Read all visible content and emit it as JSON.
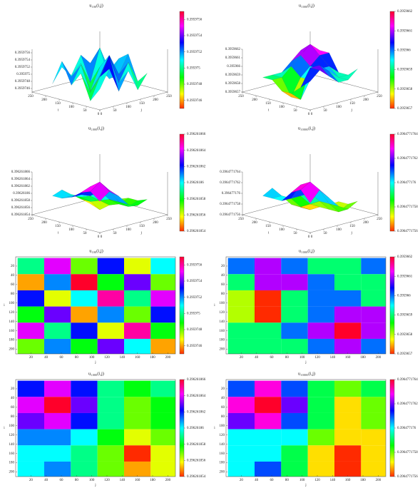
{
  "chart_data": [
    {
      "type": "surface",
      "title": "u₁₀₀(i,j)",
      "xlabel": "j",
      "ylabel": "i",
      "x": [
        20,
        55,
        90,
        125,
        160,
        195
      ],
      "y": [
        20,
        55,
        90,
        125,
        160,
        195
      ],
      "z": [
        [
          0.395975,
          0.3959755,
          0.3959748,
          0.3959753,
          0.3959747,
          0.3959751
        ],
        [
          0.3959746,
          0.3959752,
          0.3959757,
          0.3959749,
          0.3959754,
          0.3959748
        ],
        [
          0.3959753,
          0.3959747,
          0.3959751,
          0.3959756,
          0.395975,
          0.3959755
        ],
        [
          0.3959749,
          0.3959754,
          0.3959746,
          0.3959752,
          0.3959748,
          0.3959753
        ],
        [
          0.3959755,
          0.395975,
          0.3959753,
          0.3959747,
          0.3959756,
          0.3959749
        ],
        [
          0.3959748,
          0.3959752,
          0.3959749,
          0.3959754,
          0.3959751,
          0.3959746
        ]
      ],
      "xlim": [
        0,
        250
      ],
      "ylim": [
        0,
        250
      ],
      "xticks": [
        0,
        50,
        100,
        150,
        200,
        250
      ],
      "yticks": [
        0,
        50,
        100,
        150,
        200,
        250
      ],
      "zlim": [
        0.3959745,
        0.3959757
      ],
      "zticks": [
        0.3959746,
        0.3959748,
        0.395975,
        0.3959752,
        0.3959754,
        0.3959756
      ]
    },
    {
      "type": "surface",
      "title": "u₁₀₀₀(i,j)",
      "xlabel": "j",
      "ylabel": "i",
      "x": [
        20,
        55,
        90,
        125,
        160,
        195
      ],
      "y": [
        20,
        55,
        90,
        125,
        160,
        195
      ],
      "z": [
        [
          0.395966,
          0.3959661,
          0.395966,
          0.3959659,
          0.3959659,
          0.395966
        ],
        [
          0.3959659,
          0.3959661,
          0.3959661,
          0.395966,
          0.3959659,
          0.3959659
        ],
        [
          0.3959658,
          0.3959657,
          0.3959659,
          0.395966,
          0.395966,
          0.3959659
        ],
        [
          0.3959658,
          0.3959657,
          0.3959659,
          0.395966,
          0.3959661,
          0.3959661
        ],
        [
          0.3959659,
          0.3959659,
          0.395966,
          0.3959661,
          0.3959662,
          0.3959661
        ],
        [
          0.3959659,
          0.3959659,
          0.3959659,
          0.395966,
          0.3959661,
          0.395966
        ]
      ],
      "xlim": [
        0,
        250
      ],
      "ylim": [
        0,
        250
      ],
      "xticks": [
        0,
        50,
        100,
        150,
        200,
        250
      ],
      "yticks": [
        0,
        50,
        100,
        150,
        200,
        250
      ],
      "zlim": [
        0.3959657,
        0.3959662
      ],
      "zticks": [
        0.3959657,
        0.3959658,
        0.3959659,
        0.395966,
        0.3959661,
        0.3959662
      ]
    },
    {
      "type": "surface",
      "title": "u₅₀₀₀(i,j)",
      "xlabel": "j",
      "ylabel": "i",
      "x": [
        20,
        55,
        90,
        125,
        160,
        195
      ],
      "y": [
        20,
        55,
        90,
        125,
        160,
        195
      ],
      "z": [
        [
          0.396261862,
          0.396261864,
          0.396261862,
          0.396261859,
          0.396261858,
          0.396261859
        ],
        [
          0.396261864,
          0.396261866,
          0.396261863,
          0.396261859,
          0.396261857,
          0.396261858
        ],
        [
          0.396261863,
          0.396261864,
          0.396261862,
          0.396261859,
          0.396261857,
          0.396261858
        ],
        [
          0.396261861,
          0.396261861,
          0.39626186,
          0.396261858,
          0.396261856,
          0.396261857
        ],
        [
          0.39626186,
          0.39626186,
          0.396261859,
          0.396261857,
          0.396261854,
          0.396261856
        ],
        [
          0.39626186,
          0.396261861,
          0.396261859,
          0.396261857,
          0.396261855,
          0.396261856
        ]
      ],
      "xlim": [
        0,
        250
      ],
      "ylim": [
        0,
        250
      ],
      "xticks": [
        0,
        50,
        100,
        150,
        200,
        250
      ],
      "yticks": [
        0,
        50,
        100,
        150,
        200,
        250
      ],
      "zlim": [
        0.396261854,
        0.396261866
      ],
      "zticks": [
        0.396261854,
        0.396261856,
        0.396261858,
        0.39626186,
        0.396261862,
        0.396261864,
        0.396261866
      ]
    },
    {
      "type": "surface",
      "title": "u₁₀₀₀₀(i,j)",
      "xlabel": "j",
      "ylabel": "i",
      "x": [
        20,
        55,
        90,
        125,
        160,
        195
      ],
      "y": [
        20,
        55,
        90,
        125,
        160,
        195
      ],
      "z": [
        [
          0.3964771761,
          0.3964771763,
          0.3964771761,
          0.3964771759,
          0.3964771758,
          0.3964771759
        ],
        [
          0.3964771763,
          0.3964771764,
          0.3964771762,
          0.3964771759,
          0.3964771757,
          0.3964771758
        ],
        [
          0.3964771762,
          0.3964771763,
          0.3964771761,
          0.3964771759,
          0.3964771757,
          0.3964771758
        ],
        [
          0.396477176,
          0.396477176,
          0.396477176,
          0.3964771758,
          0.3964771757,
          0.3964771757
        ],
        [
          0.396477176,
          0.396477176,
          0.3964771759,
          0.3964771757,
          0.3964771756,
          0.3964771757
        ],
        [
          0.396477176,
          0.3964771761,
          0.3964771759,
          0.3964771757,
          0.3964771756,
          0.3964771757
        ]
      ],
      "xlim": [
        0,
        250
      ],
      "ylim": [
        0,
        250
      ],
      "xticks": [
        0,
        50,
        100,
        150,
        200,
        250
      ],
      "yticks": [
        0,
        50,
        100,
        150,
        200,
        250
      ],
      "zlim": [
        0.3964771756,
        0.3964771764
      ],
      "zticks": [
        0.3964771756,
        0.3964771758,
        0.396477176,
        0.3964771762,
        0.3964771764
      ]
    },
    {
      "type": "heatmap",
      "title": "u₁₀₀(i,j)",
      "xlabel": "j",
      "ylabel": "i",
      "x": [
        20,
        55,
        90,
        125,
        160,
        195
      ],
      "y": [
        20,
        55,
        90,
        125,
        160,
        195
      ],
      "z": [
        [
          0.395975,
          0.3959755,
          0.3959748,
          0.3959753,
          0.3959747,
          0.3959751
        ],
        [
          0.3959746,
          0.3959752,
          0.3959757,
          0.3959749,
          0.3959754,
          0.3959748
        ],
        [
          0.3959753,
          0.3959747,
          0.3959751,
          0.3959756,
          0.395975,
          0.3959755
        ],
        [
          0.3959749,
          0.3959754,
          0.3959746,
          0.3959752,
          0.3959748,
          0.3959753
        ],
        [
          0.3959755,
          0.395975,
          0.3959753,
          0.3959747,
          0.3959756,
          0.3959749
        ],
        [
          0.3959748,
          0.3959752,
          0.3959749,
          0.3959754,
          0.3959751,
          0.3959746
        ]
      ],
      "xlim": [
        0,
        210
      ],
      "ylim": [
        0,
        210
      ],
      "xticks": [
        20,
        40,
        60,
        80,
        100,
        120,
        140,
        160,
        180,
        200
      ],
      "yticks": [
        20,
        40,
        60,
        80,
        100,
        120,
        140,
        160,
        180,
        200
      ],
      "zlim": [
        0.3959745,
        0.3959757
      ],
      "zticks": [
        0.3959746,
        0.3959748,
        0.395975,
        0.3959752,
        0.3959754,
        0.3959756
      ]
    },
    {
      "type": "heatmap",
      "title": "u₁₀₀₀(i,j)",
      "xlabel": "j",
      "ylabel": "i",
      "x": [
        20,
        55,
        90,
        125,
        160,
        195
      ],
      "y": [
        20,
        55,
        90,
        125,
        160,
        195
      ],
      "z": [
        [
          0.395966,
          0.3959661,
          0.395966,
          0.3959659,
          0.3959659,
          0.395966
        ],
        [
          0.3959659,
          0.3959661,
          0.3959661,
          0.395966,
          0.3959659,
          0.3959659
        ],
        [
          0.3959658,
          0.3959657,
          0.3959659,
          0.395966,
          0.395966,
          0.3959659
        ],
        [
          0.3959658,
          0.3959657,
          0.3959659,
          0.395966,
          0.3959661,
          0.3959661
        ],
        [
          0.3959659,
          0.3959659,
          0.395966,
          0.3959661,
          0.3959662,
          0.3959661
        ],
        [
          0.3959659,
          0.3959659,
          0.3959659,
          0.395966,
          0.3959661,
          0.395966
        ]
      ],
      "xlim": [
        0,
        210
      ],
      "ylim": [
        0,
        210
      ],
      "xticks": [
        20,
        40,
        60,
        80,
        100,
        120,
        140,
        160,
        180,
        200
      ],
      "yticks": [
        20,
        40,
        60,
        80,
        100,
        120,
        140,
        160,
        180,
        200
      ],
      "zlim": [
        0.3959657,
        0.3959662
      ],
      "zticks": [
        0.3959657,
        0.3959658,
        0.3959659,
        0.395966,
        0.3959661,
        0.3959662
      ]
    },
    {
      "type": "heatmap",
      "title": "u₅₀₀₀(i,j)",
      "xlabel": "j",
      "ylabel": "i",
      "x": [
        20,
        55,
        90,
        125,
        160,
        195
      ],
      "y": [
        20,
        55,
        90,
        125,
        160,
        195
      ],
      "z": [
        [
          0.396261862,
          0.396261864,
          0.396261862,
          0.396261859,
          0.396261858,
          0.396261859
        ],
        [
          0.396261864,
          0.396261866,
          0.396261863,
          0.396261859,
          0.396261857,
          0.396261858
        ],
        [
          0.396261863,
          0.396261864,
          0.396261862,
          0.396261859,
          0.396261857,
          0.396261858
        ],
        [
          0.396261861,
          0.396261861,
          0.39626186,
          0.396261858,
          0.396261856,
          0.396261857
        ],
        [
          0.39626186,
          0.39626186,
          0.396261859,
          0.396261857,
          0.396261854,
          0.396261856
        ],
        [
          0.39626186,
          0.396261861,
          0.396261859,
          0.396261857,
          0.396261855,
          0.396261856
        ]
      ],
      "xlim": [
        0,
        210
      ],
      "ylim": [
        0,
        210
      ],
      "xticks": [
        20,
        40,
        60,
        80,
        100,
        120,
        140,
        160,
        180,
        200
      ],
      "yticks": [
        20,
        40,
        60,
        80,
        100,
        120,
        140,
        160,
        180,
        200
      ],
      "zlim": [
        0.396261854,
        0.396261866
      ],
      "zticks": [
        0.396261854,
        0.396261856,
        0.396261858,
        0.39626186,
        0.396261862,
        0.396261864,
        0.396261866
      ]
    },
    {
      "type": "heatmap",
      "title": "u₁₀₀₀₀(i,j)",
      "xlabel": "j",
      "ylabel": "i",
      "x": [
        20,
        55,
        90,
        125,
        160,
        195
      ],
      "y": [
        20,
        55,
        90,
        125,
        160,
        195
      ],
      "z": [
        [
          0.3964771761,
          0.3964771763,
          0.3964771761,
          0.3964771759,
          0.3964771758,
          0.3964771759
        ],
        [
          0.3964771763,
          0.3964771764,
          0.3964771762,
          0.3964771759,
          0.3964771757,
          0.3964771758
        ],
        [
          0.3964771762,
          0.3964771763,
          0.3964771761,
          0.3964771759,
          0.3964771757,
          0.3964771758
        ],
        [
          0.396477176,
          0.396477176,
          0.396477176,
          0.3964771758,
          0.3964771757,
          0.3964771757
        ],
        [
          0.396477176,
          0.396477176,
          0.3964771759,
          0.3964771757,
          0.3964771756,
          0.3964771757
        ],
        [
          0.396477176,
          0.3964771761,
          0.3964771759,
          0.3964771757,
          0.3964771756,
          0.3964771757
        ]
      ],
      "xlim": [
        0,
        210
      ],
      "ylim": [
        0,
        210
      ],
      "xticks": [
        20,
        40,
        60,
        80,
        100,
        120,
        140,
        160,
        180,
        200
      ],
      "yticks": [
        20,
        40,
        60,
        80,
        100,
        120,
        140,
        160,
        180,
        200
      ],
      "zlim": [
        0.3964771756,
        0.3964771764
      ],
      "zticks": [
        0.3964771756,
        0.3964771758,
        0.396477176,
        0.3964771762,
        0.3964771764
      ]
    }
  ]
}
